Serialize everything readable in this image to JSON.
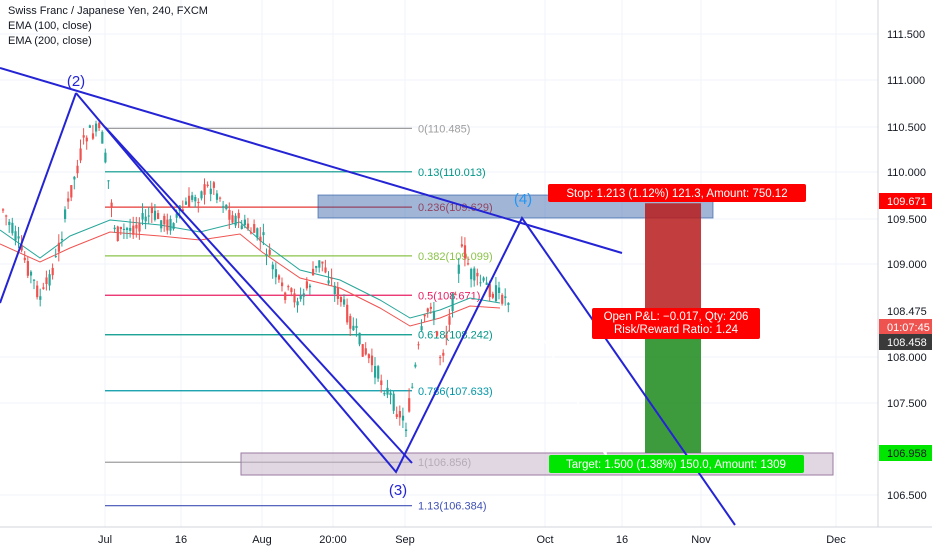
{
  "legend": {
    "symbol": "Swiss Franc / Japanese Yen, 240, FXCM",
    "ema100": "EMA (100, close)",
    "ema200": "EMA (200, close)"
  },
  "colors": {
    "price_line": "#2962ff",
    "candle_up": "#26a69a",
    "candle_down": "#ef5350",
    "ema100": "#26a69a",
    "ema200": "#ef5350",
    "stop_zone": "#b71c1c",
    "target_zone": "#1b8a1b",
    "stop_label_bg": "#ff0000",
    "target_label_bg": "#00e600",
    "trendline": "#2424d4"
  },
  "price_axis": {
    "ticks": [
      "111.500",
      "111.000",
      "110.500",
      "110.000",
      "109.500",
      "109.000",
      "108.000",
      "107.500",
      "106.500"
    ],
    "range": [
      106.2,
      111.9
    ]
  },
  "price_tags": {
    "stop": "109.671",
    "last": "108.475",
    "countdown": "01:07:45",
    "entry": "108.458",
    "target": "106.958"
  },
  "time_axis": {
    "ticks": [
      "Jul",
      "16",
      "Aug",
      "20:00",
      "Sep",
      "Oct",
      "16",
      "Nov",
      "Dec"
    ]
  },
  "waves": [
    "(2)",
    "(3)",
    "(4)"
  ],
  "fib_levels": [
    {
      "label": "0(110.485)",
      "value": 110.485
    },
    {
      "label": "0.13(110.013)",
      "value": 110.013
    },
    {
      "label": "0.236(109.629)",
      "value": 109.629
    },
    {
      "label": "0.382(109.099)",
      "value": 109.099
    },
    {
      "label": "0.5(108.671)",
      "value": 108.671
    },
    {
      "label": "0.618(108.242)",
      "value": 108.242
    },
    {
      "label": "0.786(107.633)",
      "value": 107.633
    },
    {
      "label": "1(106.856)",
      "value": 106.856
    },
    {
      "label": "1.13(106.384)",
      "value": 106.384
    }
  ],
  "position": {
    "stop_label": "Stop: 1.213 (1.12%) 121.3, Amount: 750.12",
    "pnl_label": "Open P&L: −0.017, Qty: 206",
    "rr_label": "Risk/Reward Ratio: 1.24",
    "target_label": "Target: 1.500 (1.38%) 150.0, Amount: 1309",
    "stop_price": 109.671,
    "entry_price": 108.458,
    "target_price": 106.958
  }
}
